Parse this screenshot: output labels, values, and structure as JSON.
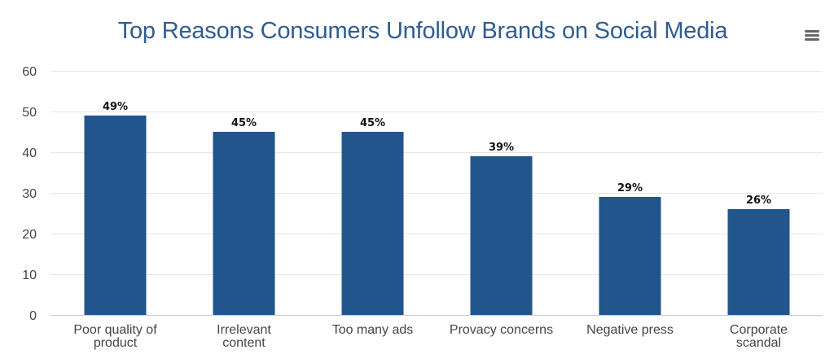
{
  "menu": {
    "icon": "hamburger-menu-icon"
  },
  "colors": {
    "bar": "#21558c",
    "title": "#2f5c8f",
    "grid": "#e6e6e6",
    "axis_text": "#444444"
  },
  "chart_data": {
    "type": "bar",
    "title": "Top Reasons Consumers Unfollow Brands on Social Media",
    "xlabel": "",
    "ylabel": "",
    "categories": [
      "Poor quality of product",
      "Irrelevant content",
      "Too many ads",
      "Provacy concerns",
      "Negative press",
      "Corporate scandal"
    ],
    "values": [
      49,
      45,
      45,
      39,
      29,
      26
    ],
    "data_labels": [
      "49%",
      "45%",
      "45%",
      "39%",
      "29%",
      "26%"
    ],
    "ylim": [
      0,
      60
    ],
    "yticks": [
      0,
      10,
      20,
      30,
      40,
      50,
      60
    ],
    "grid": true,
    "legend": "none"
  }
}
